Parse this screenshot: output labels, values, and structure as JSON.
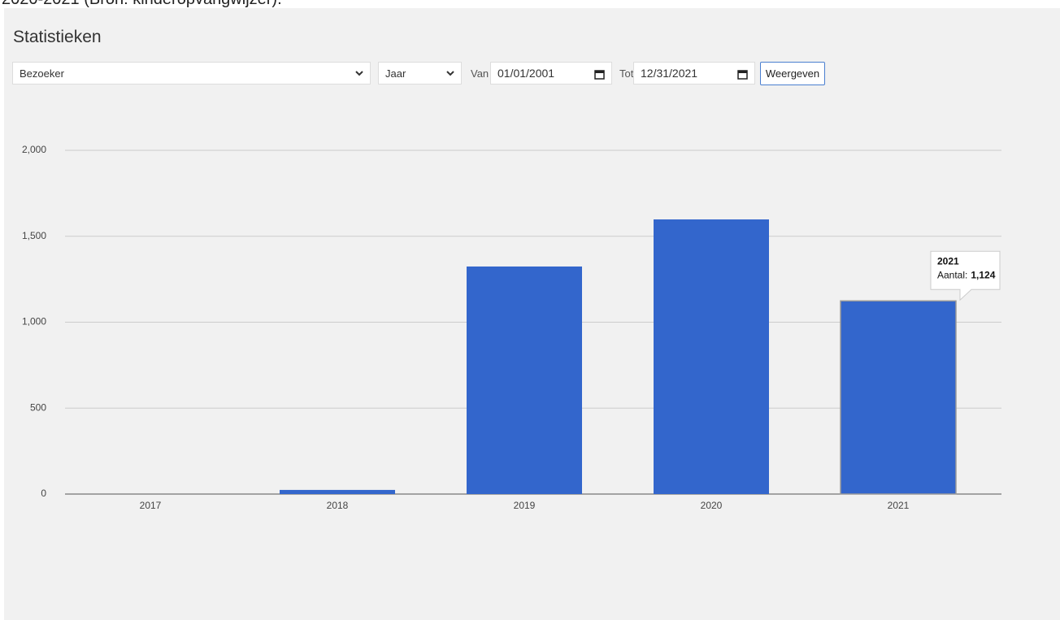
{
  "header_text": "2020-2021 (Bron: kinderopvangwijzer).",
  "page_title": "Statistieken",
  "controls": {
    "type_select": "Bezoeker",
    "period_select": "Jaar",
    "from_label": "Van",
    "from_date": "01/01/2001",
    "to_label": "Tot",
    "to_date": "12/31/2021",
    "button": "Weergeven"
  },
  "chart_data": {
    "type": "bar",
    "categories": [
      "2017",
      "2018",
      "2019",
      "2020",
      "2021"
    ],
    "series": [
      {
        "name": "Aantal",
        "color": "#3366cc",
        "values": [
          0,
          24,
          1324,
          1598,
          1124
        ],
        "value_labels": [
          null,
          null,
          null,
          null,
          "1,124"
        ]
      }
    ],
    "tooltip_label": "Aantal:",
    "ylim": [
      0,
      2000
    ],
    "yticks": [
      0,
      500,
      {
        "value": 1000,
        "label": "1,000"
      },
      {
        "value": 1500,
        "label": "1,500"
      },
      {
        "value": 2000,
        "label": "2,000"
      }
    ],
    "grid": true
  }
}
